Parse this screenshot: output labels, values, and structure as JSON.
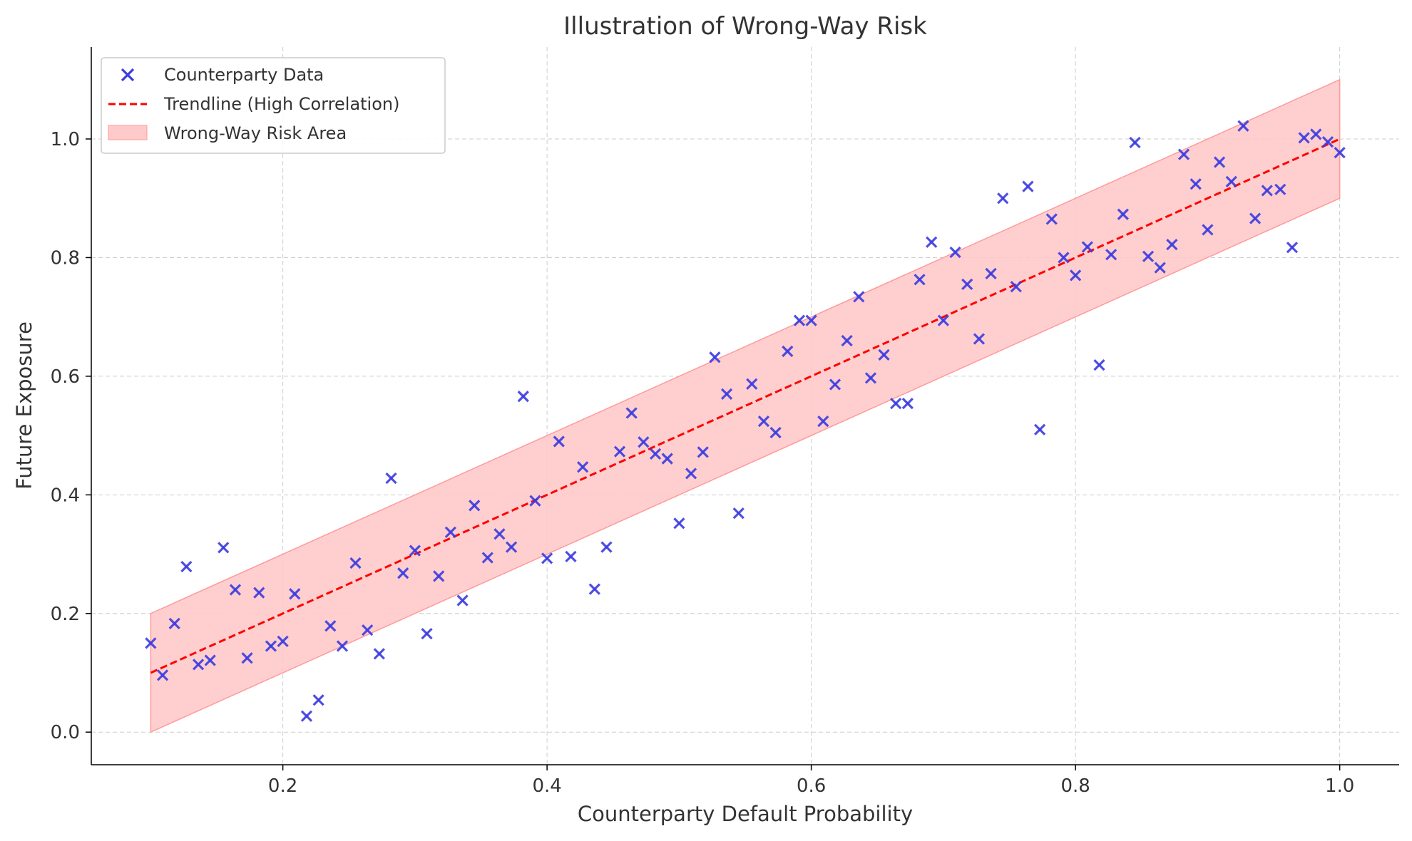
{
  "chart_data": {
    "type": "scatter",
    "title": "Illustration of Wrong-Way Risk",
    "xlabel": "Counterparty Default Probability",
    "ylabel": "Future Exposure",
    "xlim": [
      0.055,
      1.045
    ],
    "ylim": [
      -0.055,
      1.155
    ],
    "xticks": [
      0.2,
      0.4,
      0.6,
      0.8,
      1.0
    ],
    "xtick_labels": [
      "0.2",
      "0.4",
      "0.6",
      "0.8",
      "1.0"
    ],
    "yticks": [
      0.0,
      0.2,
      0.4,
      0.6,
      0.8,
      1.0
    ],
    "ytick_labels": [
      "0.0",
      "0.2",
      "0.4",
      "0.6",
      "0.8",
      "1.0"
    ],
    "grid": true,
    "legend": {
      "position": "top-left",
      "entries": [
        "Counterparty Data",
        "Trendline (High Correlation)",
        "Wrong-Way Risk Area"
      ]
    },
    "colors": {
      "scatter": "#3b3be0",
      "trendline": "#ff0000",
      "band_fill": "#ffcaca",
      "band_edge": "#ff9a9a"
    },
    "trendline": {
      "name": "Trendline (High Correlation)",
      "x": [
        0.1,
        1.0
      ],
      "y": [
        0.1,
        1.0
      ]
    },
    "band": {
      "name": "Wrong-Way Risk Area",
      "x": [
        0.1,
        1.0
      ],
      "lower": [
        0.0,
        0.9
      ],
      "upper": [
        0.2,
        1.1
      ]
    },
    "series": [
      {
        "name": "Counterparty Data",
        "x": [
          0.1,
          0.109,
          0.118,
          0.127,
          0.136,
          0.145,
          0.155,
          0.164,
          0.173,
          0.182,
          0.191,
          0.2,
          0.209,
          0.218,
          0.227,
          0.236,
          0.245,
          0.255,
          0.264,
          0.273,
          0.282,
          0.291,
          0.3,
          0.309,
          0.318,
          0.327,
          0.336,
          0.345,
          0.355,
          0.364,
          0.373,
          0.382,
          0.391,
          0.4,
          0.409,
          0.418,
          0.427,
          0.436,
          0.445,
          0.455,
          0.464,
          0.473,
          0.482,
          0.491,
          0.5,
          0.509,
          0.518,
          0.527,
          0.536,
          0.545,
          0.555,
          0.564,
          0.573,
          0.582,
          0.591,
          0.6,
          0.609,
          0.618,
          0.627,
          0.636,
          0.645,
          0.655,
          0.664,
          0.673,
          0.682,
          0.691,
          0.7,
          0.709,
          0.718,
          0.727,
          0.736,
          0.745,
          0.755,
          0.764,
          0.773,
          0.782,
          0.791,
          0.8,
          0.809,
          0.818,
          0.827,
          0.836,
          0.845,
          0.855,
          0.864,
          0.873,
          0.882,
          0.891,
          0.9,
          0.909,
          0.918,
          0.927,
          0.936,
          0.945,
          0.955,
          0.964,
          0.973,
          0.982,
          0.991,
          1.0
        ],
        "y": [
          0.15,
          0.096,
          0.183,
          0.279,
          0.114,
          0.121,
          0.311,
          0.24,
          0.125,
          0.235,
          0.145,
          0.153,
          0.233,
          0.027,
          0.054,
          0.179,
          0.145,
          0.285,
          0.172,
          0.132,
          0.428,
          0.268,
          0.306,
          0.166,
          0.263,
          0.337,
          0.222,
          0.382,
          0.294,
          0.334,
          0.312,
          0.566,
          0.39,
          0.293,
          0.49,
          0.296,
          0.447,
          0.241,
          0.312,
          0.473,
          0.538,
          0.489,
          0.469,
          0.461,
          0.352,
          0.436,
          0.472,
          0.632,
          0.57,
          0.369,
          0.587,
          0.524,
          0.505,
          0.642,
          0.694,
          0.694,
          0.524,
          0.586,
          0.66,
          0.734,
          0.597,
          0.636,
          0.554,
          0.554,
          0.763,
          0.826,
          0.694,
          0.809,
          0.755,
          0.663,
          0.773,
          0.9,
          0.751,
          0.92,
          0.51,
          0.865,
          0.8,
          0.77,
          0.818,
          0.619,
          0.805,
          0.873,
          0.994,
          0.802,
          0.783,
          0.822,
          0.974,
          0.924,
          0.847,
          0.961,
          0.928,
          1.022,
          0.866,
          0.913,
          0.915,
          0.817,
          1.002,
          1.008,
          0.995,
          0.977
        ]
      }
    ]
  }
}
